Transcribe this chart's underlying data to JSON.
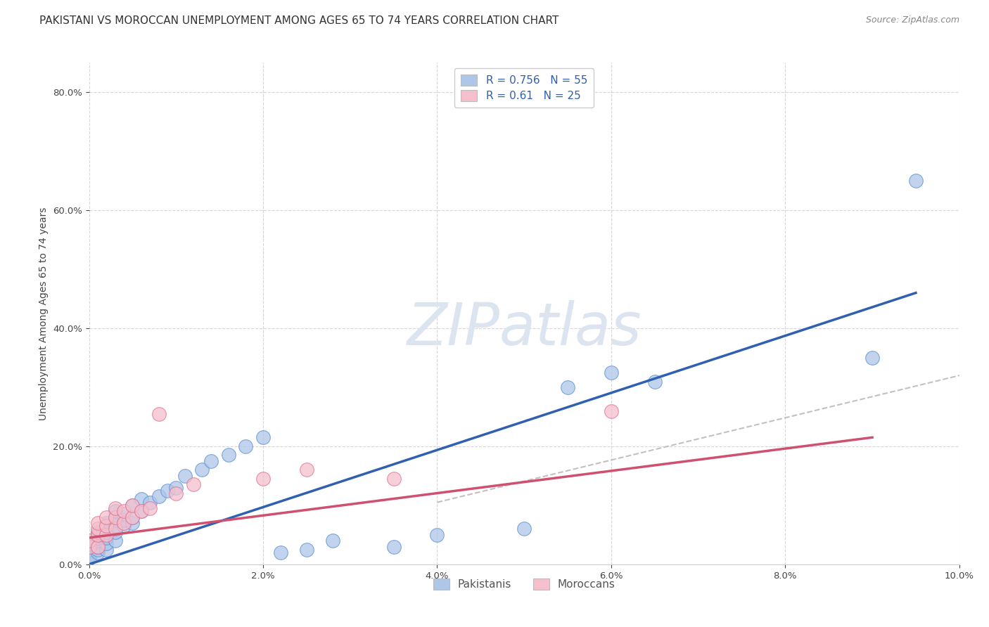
{
  "title": "PAKISTANI VS MOROCCAN UNEMPLOYMENT AMONG AGES 65 TO 74 YEARS CORRELATION CHART",
  "source": "Source: ZipAtlas.com",
  "ylabel": "Unemployment Among Ages 65 to 74 years",
  "xlim": [
    0.0,
    0.1
  ],
  "ylim": [
    0.0,
    0.85
  ],
  "xticks": [
    0.0,
    0.02,
    0.04,
    0.06,
    0.08,
    0.1
  ],
  "yticks": [
    0.0,
    0.2,
    0.4,
    0.6,
    0.8
  ],
  "pakistani_R": 0.756,
  "pakistani_N": 55,
  "moroccan_R": 0.61,
  "moroccan_N": 25,
  "pakistani_color": "#aec6e8",
  "pakistani_edge_color": "#5b8fd4",
  "pakistani_line_color": "#3060b0",
  "moroccan_color": "#f5bfcc",
  "moroccan_edge_color": "#e07090",
  "moroccan_line_color": "#d05070",
  "dash_line_color": "#c0b8b8",
  "background_color": "#ffffff",
  "grid_color": "#cccccc",
  "watermark_text": "ZIPatlas",
  "watermark_color": "#dce4f0",
  "title_fontsize": 11,
  "axis_label_fontsize": 10,
  "tick_fontsize": 9.5,
  "legend_fontsize": 11,
  "pakistani_scatter_x": [
    0.0,
    0.0,
    0.0,
    0.0,
    0.0,
    0.0,
    0.001,
    0.001,
    0.001,
    0.001,
    0.001,
    0.001,
    0.001,
    0.002,
    0.002,
    0.002,
    0.002,
    0.002,
    0.002,
    0.002,
    0.003,
    0.003,
    0.003,
    0.003,
    0.003,
    0.003,
    0.004,
    0.004,
    0.004,
    0.005,
    0.005,
    0.005,
    0.006,
    0.006,
    0.007,
    0.008,
    0.009,
    0.01,
    0.011,
    0.013,
    0.014,
    0.016,
    0.018,
    0.02,
    0.022,
    0.025,
    0.028,
    0.035,
    0.04,
    0.05,
    0.055,
    0.06,
    0.065,
    0.09,
    0.095
  ],
  "pakistani_scatter_y": [
    0.02,
    0.015,
    0.025,
    0.03,
    0.01,
    0.035,
    0.02,
    0.025,
    0.03,
    0.04,
    0.045,
    0.05,
    0.055,
    0.025,
    0.035,
    0.045,
    0.055,
    0.06,
    0.065,
    0.07,
    0.04,
    0.055,
    0.065,
    0.075,
    0.08,
    0.09,
    0.065,
    0.075,
    0.085,
    0.07,
    0.08,
    0.1,
    0.09,
    0.11,
    0.105,
    0.115,
    0.125,
    0.13,
    0.15,
    0.16,
    0.175,
    0.185,
    0.2,
    0.215,
    0.02,
    0.025,
    0.04,
    0.03,
    0.05,
    0.06,
    0.3,
    0.325,
    0.31,
    0.35,
    0.65
  ],
  "moroccan_scatter_x": [
    0.0,
    0.0,
    0.001,
    0.001,
    0.001,
    0.001,
    0.002,
    0.002,
    0.002,
    0.003,
    0.003,
    0.003,
    0.004,
    0.004,
    0.005,
    0.005,
    0.006,
    0.007,
    0.008,
    0.01,
    0.012,
    0.02,
    0.025,
    0.035,
    0.06
  ],
  "moroccan_scatter_y": [
    0.03,
    0.04,
    0.03,
    0.05,
    0.06,
    0.07,
    0.05,
    0.065,
    0.08,
    0.06,
    0.08,
    0.095,
    0.07,
    0.09,
    0.08,
    0.1,
    0.09,
    0.095,
    0.255,
    0.12,
    0.135,
    0.145,
    0.16,
    0.145,
    0.26
  ],
  "pak_line_x0": 0.0,
  "pak_line_y0": 0.0,
  "pak_line_x1": 0.095,
  "pak_line_y1": 0.46,
  "mor_line_x0": 0.0,
  "mor_line_y0": 0.045,
  "mor_line_x1": 0.09,
  "mor_line_y1": 0.215,
  "dash_line_x0": 0.04,
  "dash_line_y0": 0.105,
  "dash_line_x1": 0.1,
  "dash_line_y1": 0.32
}
